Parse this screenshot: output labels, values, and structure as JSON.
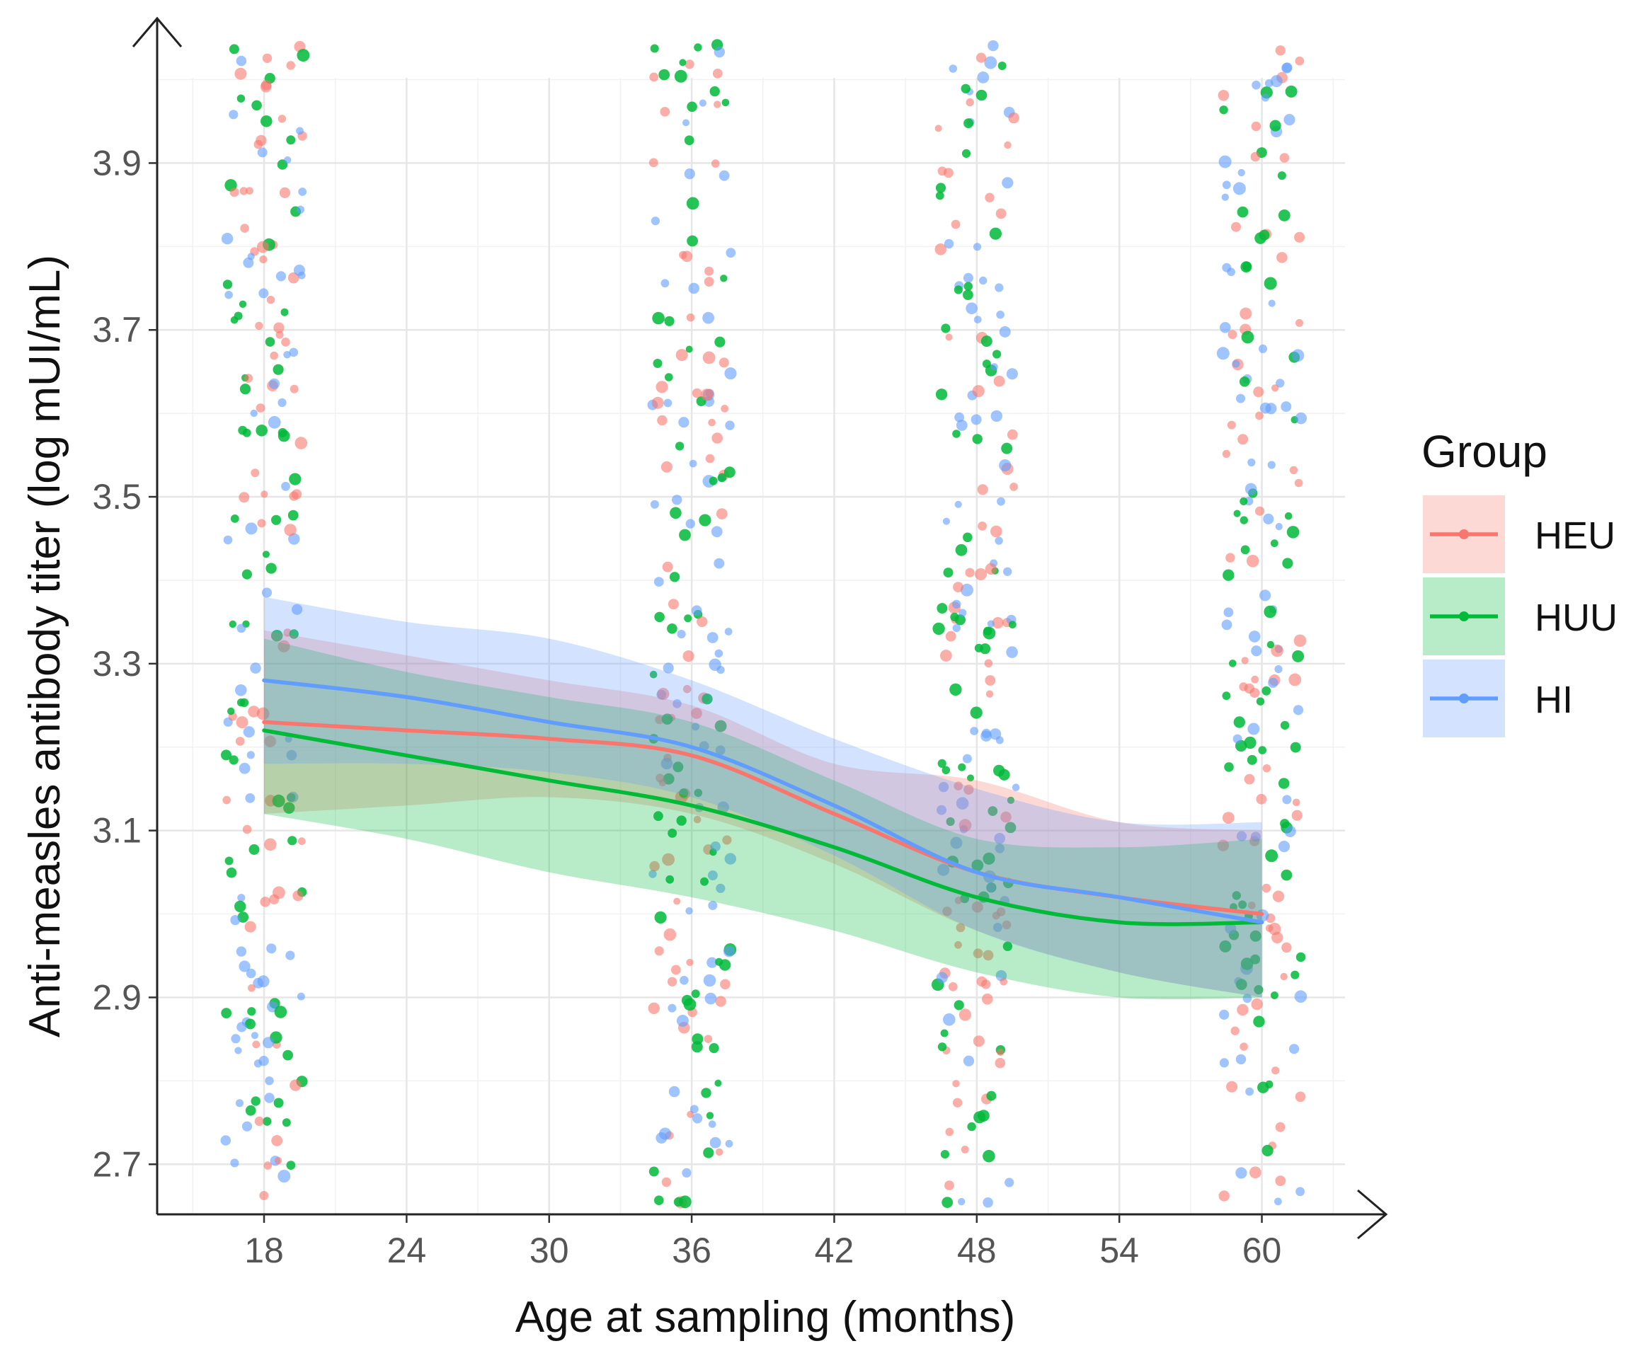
{
  "chart_data": {
    "type": "scatter",
    "title": "",
    "xlabel": "Age at sampling (months)",
    "ylabel": "Anti-measles antibody titer (log mUI/mL)",
    "xlim": [
      13.5,
      63.5
    ],
    "ylim": [
      2.64,
      4.07
    ],
    "x_ticks": [
      18,
      24,
      30,
      36,
      42,
      48,
      54,
      60
    ],
    "x_tick_labels": [
      "18",
      "24",
      "30",
      "36",
      "42",
      "48",
      "54",
      "60"
    ],
    "y_ticks": [
      2.7,
      2.9,
      3.1,
      3.3,
      3.5,
      3.7,
      3.9
    ],
    "y_tick_labels": [
      "2.7",
      "2.9",
      "3.1",
      "3.3",
      "3.5",
      "3.7",
      "3.9"
    ],
    "grid": true,
    "legend": {
      "title": "Group",
      "position": "right",
      "entries": [
        "HEU",
        "HUU",
        "HI"
      ]
    },
    "jitter_groups_months": [
      18,
      36,
      48,
      60
    ],
    "jitter_y_range": [
      2.65,
      4.05
    ],
    "points_per_group_per_series": 65,
    "series": [
      {
        "name": "HEU",
        "color": "#F8766D",
        "fit_x": [
          18,
          24,
          30,
          36,
          42,
          48,
          54,
          60
        ],
        "fit_y": [
          3.23,
          3.22,
          3.21,
          3.19,
          3.12,
          3.05,
          3.02,
          3.0
        ],
        "ci_lower": [
          3.12,
          3.13,
          3.14,
          3.12,
          3.06,
          2.98,
          2.93,
          2.9
        ],
        "ci_upper": [
          3.34,
          3.31,
          3.28,
          3.25,
          3.18,
          3.16,
          3.11,
          3.1
        ]
      },
      {
        "name": "HUU",
        "color": "#00BA38",
        "fit_x": [
          18,
          24,
          30,
          36,
          42,
          48,
          54,
          60
        ],
        "fit_y": [
          3.22,
          3.19,
          3.16,
          3.13,
          3.08,
          3.02,
          2.99,
          2.99
        ],
        "ci_lower": [
          3.12,
          3.09,
          3.05,
          3.02,
          2.98,
          2.93,
          2.9,
          2.9
        ],
        "ci_upper": [
          3.33,
          3.29,
          3.26,
          3.23,
          3.16,
          3.09,
          3.08,
          3.09
        ]
      },
      {
        "name": "HI",
        "color": "#619CFF",
        "fit_x": [
          18,
          24,
          30,
          36,
          42,
          48,
          54,
          60
        ],
        "fit_y": [
          3.28,
          3.26,
          3.23,
          3.2,
          3.13,
          3.05,
          3.02,
          2.99
        ],
        "ci_lower": [
          3.18,
          3.18,
          3.17,
          3.14,
          3.07,
          2.98,
          2.93,
          2.9
        ],
        "ci_upper": [
          3.38,
          3.35,
          3.33,
          3.28,
          3.21,
          3.15,
          3.11,
          3.11
        ]
      }
    ]
  }
}
